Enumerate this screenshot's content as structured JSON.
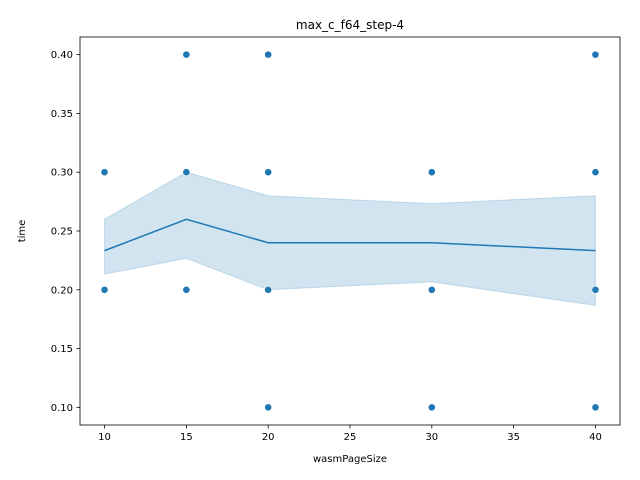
{
  "chart_data": {
    "type": "line",
    "title": "max_c_f64_step-4",
    "xlabel": "wasmPageSize",
    "ylabel": "time",
    "xlim": [
      8.5,
      41.5
    ],
    "ylim": [
      0.085,
      0.415
    ],
    "xticks": [
      10,
      15,
      20,
      25,
      30,
      35,
      40
    ],
    "yticks": [
      0.1,
      0.15,
      0.2,
      0.25,
      0.3,
      0.35,
      0.4
    ],
    "grid": false,
    "legend": "none",
    "colors": {
      "line": "#1f77b4",
      "points": "#1f77b4",
      "band": "#1f77b4"
    },
    "scatter": [
      {
        "x": 10,
        "y": 0.3
      },
      {
        "x": 10,
        "y": 0.2
      },
      {
        "x": 15,
        "y": 0.4
      },
      {
        "x": 15,
        "y": 0.3
      },
      {
        "x": 15,
        "y": 0.2
      },
      {
        "x": 20,
        "y": 0.4
      },
      {
        "x": 20,
        "y": 0.3
      },
      {
        "x": 20,
        "y": 0.2
      },
      {
        "x": 20,
        "y": 0.1
      },
      {
        "x": 30,
        "y": 0.3
      },
      {
        "x": 30,
        "y": 0.2
      },
      {
        "x": 30,
        "y": 0.1
      },
      {
        "x": 40,
        "y": 0.4
      },
      {
        "x": 40,
        "y": 0.3
      },
      {
        "x": 40,
        "y": 0.2
      },
      {
        "x": 40,
        "y": 0.1
      }
    ],
    "mean_line": [
      {
        "x": 10,
        "y": 0.2333
      },
      {
        "x": 15,
        "y": 0.26
      },
      {
        "x": 20,
        "y": 0.24
      },
      {
        "x": 30,
        "y": 0.24
      },
      {
        "x": 40,
        "y": 0.2333
      }
    ],
    "ci_band": [
      {
        "x": 10,
        "lower": 0.2133,
        "upper": 0.26
      },
      {
        "x": 15,
        "lower": 0.2267,
        "upper": 0.3
      },
      {
        "x": 20,
        "lower": 0.2,
        "upper": 0.28
      },
      {
        "x": 30,
        "lower": 0.2067,
        "upper": 0.2733
      },
      {
        "x": 40,
        "lower": 0.1867,
        "upper": 0.28
      }
    ]
  }
}
